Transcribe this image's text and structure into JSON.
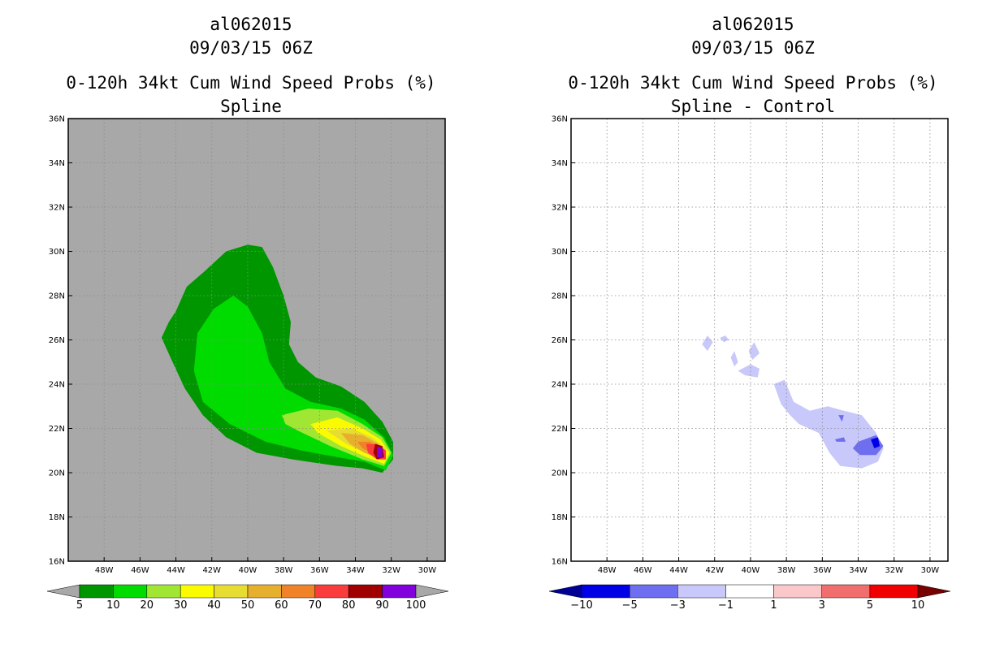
{
  "colors": {
    "background": "#ffffff",
    "left_plot_bg": "#a8a8a8"
  },
  "chart_data": [
    {
      "type": "heatmap",
      "name": "left",
      "title_lines": [
        "al062015",
        "09/03/15 06Z",
        "0-120h 34kt Cum Wind Speed Probs (%)",
        "Spline"
      ],
      "xlabel": "",
      "ylabel": "",
      "x_range": [
        -50,
        -29
      ],
      "y_range": [
        16,
        36
      ],
      "x_ticks": [
        -48,
        -46,
        -44,
        -42,
        -40,
        -38,
        -36,
        -34,
        -32,
        -30
      ],
      "x_tick_labels": [
        "48W",
        "46W",
        "44W",
        "42W",
        "40W",
        "38W",
        "36W",
        "34W",
        "32W",
        "30W"
      ],
      "y_ticks": [
        16,
        18,
        20,
        22,
        24,
        26,
        28,
        30,
        32,
        34,
        36
      ],
      "y_tick_labels": [
        "16N",
        "18N",
        "20N",
        "22N",
        "24N",
        "26N",
        "28N",
        "30N",
        "32N",
        "34N",
        "36N"
      ],
      "grid": true,
      "levels": [
        5,
        10,
        20,
        30,
        40,
        50,
        60,
        70,
        80,
        90,
        100
      ],
      "level_labels": [
        "5",
        "10",
        "20",
        "30",
        "40",
        "50",
        "60",
        "70",
        "80",
        "90",
        "100"
      ],
      "fill_colors": [
        "#009600",
        "#00dc00",
        "#a0e632",
        "#fafa00",
        "#e6dc32",
        "#e6af2d",
        "#f08228",
        "#fa3c3c",
        "#a00000",
        "#8200dc"
      ],
      "arrow_colors": [
        "#a8a8a8",
        "#a8a8a8"
      ],
      "contours": [
        {
          "level": 5,
          "fill": "#009600",
          "points": [
            [
              -44.0,
              27.3
            ],
            [
              -43.4,
              28.4
            ],
            [
              -42.4,
              29.1
            ],
            [
              -41.2,
              30.0
            ],
            [
              -40.0,
              30.3
            ],
            [
              -39.2,
              30.2
            ],
            [
              -38.6,
              29.3
            ],
            [
              -38.0,
              28.0
            ],
            [
              -37.6,
              26.8
            ],
            [
              -37.7,
              25.8
            ],
            [
              -37.2,
              25.0
            ],
            [
              -36.2,
              24.3
            ],
            [
              -34.8,
              23.9
            ],
            [
              -33.5,
              23.2
            ],
            [
              -32.5,
              22.3
            ],
            [
              -31.9,
              21.4
            ],
            [
              -31.9,
              20.6
            ],
            [
              -32.5,
              20.0
            ],
            [
              -33.6,
              20.2
            ],
            [
              -35.0,
              20.3
            ],
            [
              -37.5,
              20.6
            ],
            [
              -39.5,
              20.9
            ],
            [
              -41.2,
              21.6
            ],
            [
              -42.5,
              22.6
            ],
            [
              -43.5,
              23.8
            ],
            [
              -44.3,
              25.2
            ],
            [
              -44.8,
              26.1
            ],
            [
              -44.4,
              26.8
            ]
          ]
        },
        {
          "level": 10,
          "fill": "#00dc00",
          "points": [
            [
              -42.8,
              26.3
            ],
            [
              -41.9,
              27.4
            ],
            [
              -40.8,
              28.0
            ],
            [
              -40.0,
              27.5
            ],
            [
              -39.2,
              26.3
            ],
            [
              -38.8,
              25.0
            ],
            [
              -37.9,
              23.8
            ],
            [
              -36.5,
              23.2
            ],
            [
              -34.8,
              22.9
            ],
            [
              -33.5,
              22.4
            ],
            [
              -32.4,
              21.6
            ],
            [
              -31.9,
              20.8
            ],
            [
              -32.3,
              20.1
            ],
            [
              -33.5,
              20.5
            ],
            [
              -35.0,
              20.7
            ],
            [
              -37.0,
              21.0
            ],
            [
              -39.0,
              21.4
            ],
            [
              -41.0,
              22.2
            ],
            [
              -42.5,
              23.2
            ],
            [
              -43.0,
              24.6
            ]
          ]
        },
        {
          "level": 20,
          "fill": "#a0e632",
          "points": [
            [
              -38.1,
              22.6
            ],
            [
              -36.6,
              22.9
            ],
            [
              -35.0,
              22.8
            ],
            [
              -33.6,
              22.2
            ],
            [
              -32.5,
              21.6
            ],
            [
              -32.0,
              20.9
            ],
            [
              -32.4,
              20.3
            ],
            [
              -33.6,
              20.6
            ],
            [
              -35.4,
              21.2
            ],
            [
              -37.2,
              21.9
            ],
            [
              -37.9,
              22.2
            ]
          ]
        },
        {
          "level": 30,
          "fill": "#fafa00",
          "points": [
            [
              -36.5,
              22.2
            ],
            [
              -35.0,
              22.5
            ],
            [
              -33.6,
              22.0
            ],
            [
              -32.6,
              21.5
            ],
            [
              -32.1,
              20.9
            ],
            [
              -32.4,
              20.4
            ],
            [
              -33.4,
              20.7
            ],
            [
              -34.8,
              21.2
            ],
            [
              -36.1,
              21.8
            ]
          ]
        },
        {
          "level": 40,
          "fill": "#e6dc32",
          "points": [
            [
              -35.6,
              21.9
            ],
            [
              -34.2,
              22.0
            ],
            [
              -33.1,
              21.6
            ],
            [
              -32.3,
              21.1
            ],
            [
              -32.3,
              20.6
            ],
            [
              -33.2,
              20.8
            ],
            [
              -34.5,
              21.3
            ]
          ]
        },
        {
          "level": 50,
          "fill": "#e6af2d",
          "points": [
            [
              -34.8,
              21.8
            ],
            [
              -33.6,
              21.7
            ],
            [
              -32.7,
              21.3
            ],
            [
              -32.3,
              20.8
            ],
            [
              -32.5,
              20.6
            ],
            [
              -33.5,
              20.9
            ],
            [
              -34.3,
              21.3
            ]
          ]
        },
        {
          "level": 60,
          "fill": "#f08228",
          "points": [
            [
              -33.9,
              21.4
            ],
            [
              -33.2,
              21.4
            ],
            [
              -32.5,
              21.0
            ],
            [
              -32.4,
              20.7
            ],
            [
              -32.9,
              20.8
            ],
            [
              -33.6,
              21.1
            ]
          ]
        },
        {
          "level": 70,
          "fill": "#fa3c3c",
          "points": [
            [
              -33.4,
              21.3
            ],
            [
              -32.8,
              21.3
            ],
            [
              -32.3,
              21.0
            ],
            [
              -32.3,
              20.6
            ],
            [
              -32.8,
              20.6
            ],
            [
              -33.3,
              20.9
            ]
          ]
        },
        {
          "level": 80,
          "fill": "#a00000",
          "points": [
            [
              -32.9,
              21.3
            ],
            [
              -32.5,
              21.2
            ],
            [
              -32.4,
              20.7
            ],
            [
              -32.8,
              20.6
            ],
            [
              -33.0,
              20.9
            ]
          ]
        },
        {
          "level": 90,
          "fill": "#8200dc",
          "points": [
            [
              -32.8,
              21.2
            ],
            [
              -32.5,
              21.1
            ],
            [
              -32.5,
              20.7
            ],
            [
              -32.8,
              20.7
            ]
          ]
        }
      ]
    },
    {
      "type": "heatmap",
      "name": "right",
      "title_lines": [
        "al062015",
        "09/03/15 06Z",
        "0-120h 34kt Cum Wind Speed Probs (%)",
        "Spline - Control"
      ],
      "xlabel": "",
      "ylabel": "",
      "x_range": [
        -50,
        -29
      ],
      "y_range": [
        16,
        36
      ],
      "x_ticks": [
        -48,
        -46,
        -44,
        -42,
        -40,
        -38,
        -36,
        -34,
        -32,
        -30
      ],
      "x_tick_labels": [
        "48W",
        "46W",
        "44W",
        "42W",
        "40W",
        "38W",
        "36W",
        "34W",
        "32W",
        "30W"
      ],
      "y_ticks": [
        16,
        18,
        20,
        22,
        24,
        26,
        28,
        30,
        32,
        34,
        36
      ],
      "y_tick_labels": [
        "16N",
        "18N",
        "20N",
        "22N",
        "24N",
        "26N",
        "28N",
        "30N",
        "32N",
        "34N",
        "36N"
      ],
      "grid": true,
      "levels": [
        -10,
        -5,
        -3,
        -1,
        1,
        3,
        5,
        10
      ],
      "level_labels": [
        "-10",
        "-5",
        "-3",
        "-1",
        "1",
        "3",
        "5",
        "10"
      ],
      "fill_colors": [
        "#0000e6",
        "#6e6ef0",
        "#c8c8fa",
        "#ffffff",
        "#fac8c8",
        "#f06e6e",
        "#f00000"
      ],
      "arrow_colors": [
        "#000096",
        "#780000"
      ],
      "contours": [
        {
          "level": -1,
          "fill": "#c8c8fa",
          "points": [
            [
              -38.7,
              24.0
            ],
            [
              -38.1,
              24.2
            ],
            [
              -37.6,
              23.2
            ],
            [
              -36.7,
              22.8
            ],
            [
              -35.7,
              23.0
            ],
            [
              -34.8,
              22.8
            ],
            [
              -33.8,
              22.6
            ],
            [
              -33.0,
              21.8
            ],
            [
              -32.6,
              21.1
            ],
            [
              -32.9,
              20.5
            ],
            [
              -33.8,
              20.2
            ],
            [
              -35.0,
              20.3
            ],
            [
              -35.6,
              20.9
            ],
            [
              -36.2,
              21.8
            ],
            [
              -37.3,
              22.2
            ],
            [
              -37.8,
              22.6
            ],
            [
              -38.3,
              23.1
            ]
          ]
        },
        {
          "level": -1,
          "fill": "#c8c8fa",
          "points": [
            [
              -42.7,
              25.8
            ],
            [
              -42.4,
              26.2
            ],
            [
              -42.1,
              25.9
            ],
            [
              -42.4,
              25.5
            ]
          ]
        },
        {
          "level": -1,
          "fill": "#c8c8fa",
          "points": [
            [
              -41.7,
              26.1
            ],
            [
              -41.4,
              26.2
            ],
            [
              -41.2,
              26.0
            ],
            [
              -41.5,
              25.9
            ]
          ]
        },
        {
          "level": -1,
          "fill": "#c8c8fa",
          "points": [
            [
              -40.1,
              25.5
            ],
            [
              -39.8,
              25.9
            ],
            [
              -39.5,
              25.4
            ],
            [
              -39.9,
              25.1
            ]
          ]
        },
        {
          "level": -1,
          "fill": "#c8c8fa",
          "points": [
            [
              -41.1,
              25.2
            ],
            [
              -40.9,
              25.5
            ],
            [
              -40.7,
              25.0
            ],
            [
              -40.9,
              24.8
            ]
          ]
        },
        {
          "level": -1,
          "fill": "#c8c8fa",
          "points": [
            [
              -40.7,
              24.6
            ],
            [
              -40.0,
              24.9
            ],
            [
              -39.5,
              24.7
            ],
            [
              -39.6,
              24.3
            ],
            [
              -40.3,
              24.4
            ]
          ]
        },
        {
          "level": -3,
          "fill": "#6e6ef0",
          "points": [
            [
              -34.0,
              21.4
            ],
            [
              -33.0,
              21.7
            ],
            [
              -32.6,
              21.2
            ],
            [
              -33.0,
              20.8
            ],
            [
              -33.9,
              20.8
            ],
            [
              -34.3,
              21.1
            ]
          ]
        },
        {
          "level": -3,
          "fill": "#6e6ef0",
          "points": [
            [
              -35.3,
              21.5
            ],
            [
              -34.8,
              21.6
            ],
            [
              -34.7,
              21.4
            ],
            [
              -35.2,
              21.4
            ]
          ]
        },
        {
          "level": -3,
          "fill": "#6e6ef0",
          "points": [
            [
              -35.1,
              22.6
            ],
            [
              -34.8,
              22.6
            ],
            [
              -34.9,
              22.3
            ]
          ]
        },
        {
          "level": -5,
          "fill": "#0000e6",
          "points": [
            [
              -33.3,
              21.5
            ],
            [
              -32.9,
              21.6
            ],
            [
              -32.8,
              21.2
            ],
            [
              -33.1,
              21.1
            ]
          ]
        }
      ]
    }
  ]
}
